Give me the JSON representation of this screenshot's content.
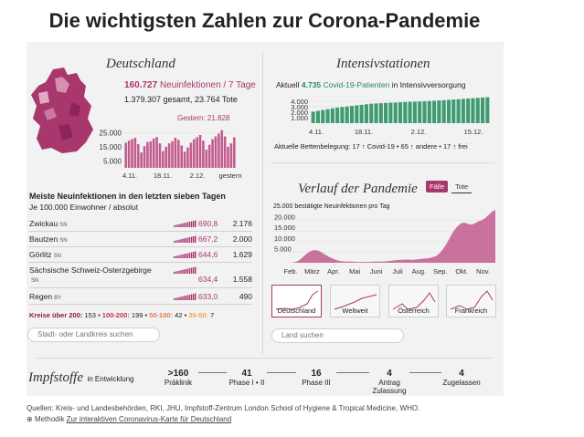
{
  "title": "Die wichtigsten Zahlen zur Corona-Pandemie",
  "germany": {
    "header": "Deutschland",
    "new_infections": "160.727",
    "new_infections_label": "Neuinfektionen / 7 Tage",
    "totals": "1.379.307 gesamt, 23.764 Tote",
    "yesterday": "Gestern: 21.828",
    "colors": {
      "map": "#a8376d",
      "map_light": "#d78fb0",
      "bar": "#c25c8e"
    }
  },
  "germany_chart": {
    "type": "bar",
    "title": "",
    "yticks": [
      "25.000",
      "15.000",
      "5.000"
    ],
    "xticks": [
      "4.11.",
      "18.11.",
      "2.12.",
      "gestern"
    ],
    "ylim": [
      0,
      30000
    ],
    "values": [
      18000,
      19500,
      20500,
      21500,
      17000,
      11000,
      15500,
      18500,
      19000,
      21000,
      22000,
      17500,
      12000,
      15000,
      17500,
      19000,
      21500,
      20000,
      16000,
      11500,
      14500,
      18000,
      20500,
      22000,
      23500,
      19500,
      13000,
      16500,
      20500,
      22500,
      24500,
      27000,
      22500,
      15000,
      17500,
      21828
    ]
  },
  "top_districts": {
    "heading": "Meiste Neuinfektionen in den letzten sieben Tagen",
    "subheading": "Je 100.000 Einwohner / absolut",
    "rows": [
      {
        "name": "Zwickau",
        "state": "SN",
        "rate": "690,8",
        "abs": "2.176"
      },
      {
        "name": "Bautzen",
        "state": "SN",
        "rate": "667,2",
        "abs": "2.000"
      },
      {
        "name": "Görlitz",
        "state": "SN",
        "rate": "644,6",
        "abs": "1.629"
      },
      {
        "name": "Sächsische Schweiz-Osterzgebirge",
        "state": "SN",
        "rate": "634,4",
        "abs": "1.558"
      },
      {
        "name": "Regen",
        "state": "BY",
        "rate": "633,0",
        "abs": "490"
      }
    ],
    "legend": {
      "prefix": "Kreise über 200:",
      "over200": "153",
      "b1": "100-200:",
      "v1": "199",
      "b2": "50-100:",
      "v2": "42",
      "b3": "35-50:",
      "v3": "7"
    },
    "search_placeholder": "Stadt- oder Landkreis suchen"
  },
  "icu": {
    "header": "Intensivstationen",
    "line_prefix": "Aktuell",
    "patients": "4.735",
    "patients_label": "Covid-19-Patienten",
    "line_suffix": "in Intensivversorgung",
    "beds_text": "Aktuelle Bettenbelegung: 17 ↑ Covid-19 • 65 ↑ andere • 17 ↑ frei"
  },
  "icu_chart": {
    "type": "bar",
    "yticks": [
      "4.000",
      "3.000",
      "2.000",
      "1.000"
    ],
    "xticks": [
      "4.11.",
      "18.11.",
      "2.12.",
      "15.12."
    ],
    "ylim": [
      0,
      5000
    ],
    "values": [
      2100,
      2250,
      2400,
      2550,
      2700,
      2850,
      2950,
      3050,
      3150,
      3250,
      3350,
      3450,
      3550,
      3600,
      3650,
      3700,
      3750,
      3780,
      3820,
      3860,
      3900,
      3930,
      3960,
      4000,
      4050,
      4100,
      4150,
      4200,
      4260,
      4320,
      4380,
      4440,
      4500,
      4560,
      4620,
      4680,
      4735
    ],
    "color": "#3f9b72"
  },
  "course": {
    "header": "Verlauf der Pandemie",
    "tab_cases": "Fälle",
    "tab_deaths": "Tote",
    "chart_label": "25.000 bestätigte Neuinfektionen pro Tag",
    "search_placeholder": "Land suchen",
    "countries": [
      "Deutschland",
      "Weltweit",
      "Österreich",
      "Frankreich"
    ]
  },
  "course_chart": {
    "type": "area",
    "yticks": [
      "25.000",
      "20.000",
      "15.000",
      "10.000",
      "5.000"
    ],
    "xticks": [
      "Feb.",
      "März",
      "Apr.",
      "Mai",
      "Juni",
      "Juli",
      "Aug.",
      "Sep.",
      "Okt.",
      "Nov."
    ],
    "ylim": [
      0,
      25000
    ],
    "values": [
      0,
      0,
      0,
      0,
      0,
      50,
      150,
      500,
      1500,
      3000,
      4500,
      5500,
      6000,
      5800,
      5000,
      4000,
      3000,
      2200,
      1500,
      1000,
      700,
      600,
      500,
      500,
      400,
      400,
      400,
      400,
      450,
      500,
      500,
      550,
      600,
      700,
      900,
      1100,
      1300,
      1400,
      1500,
      1500,
      1400,
      1500,
      1700,
      1900,
      2000,
      2200,
      2600,
      3200,
      4500,
      6500,
      9000,
      12000,
      15000,
      17000,
      18500,
      19000,
      18500,
      18000,
      18500,
      19500,
      20000,
      21000,
      22500,
      24000,
      25000
    ],
    "color": "#c25c8e"
  },
  "vaccines": {
    "header": "Impfstoffe",
    "header_suffix": "in Entwicklung",
    "stages": [
      {
        "value": ">160",
        "label": "Präklinik"
      },
      {
        "value": "41",
        "label": "Phase I • II"
      },
      {
        "value": "16",
        "label": "Phase III"
      },
      {
        "value": "4",
        "label": "Antrag Zulassung"
      },
      {
        "value": "4",
        "label": "Zugelassen"
      }
    ]
  },
  "footer": {
    "sources": "Quellen: Kreis- und Landesbehörden, RKI, JHU, Impfstoff-Zentrum London School of Hygiene & Tropical Medicine, WHO.",
    "method_prefix": "Methodik",
    "link": "Zur interaktiven Coronavirus-Karte für Deutschland"
  }
}
